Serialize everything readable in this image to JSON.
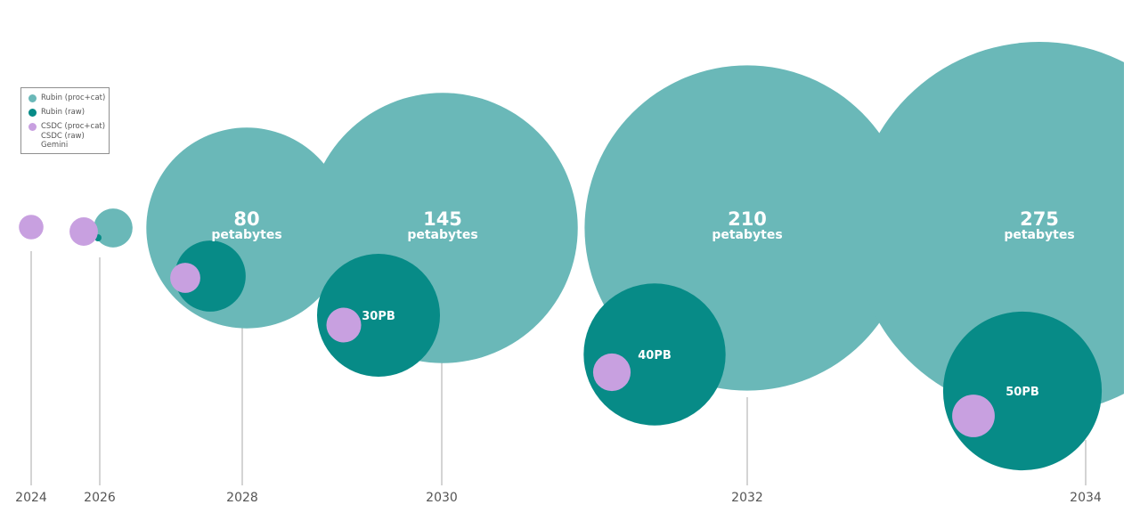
{
  "chart_data": {
    "type": "bubble",
    "colors": {
      "rubin_proc_cat": "#6ab8b8",
      "rubin_raw": "#078b87",
      "csdc_proc_cat": "#c8a0e0",
      "axis": "#aaaaaa",
      "tick_text": "#555555"
    },
    "years": [
      "2024",
      "2026",
      "2028",
      "2030",
      "2032",
      "2034"
    ],
    "series": [
      {
        "name": "Rubin (proc+cat)",
        "values": [
          null,
          3,
          80,
          145,
          210,
          275
        ],
        "labels": [
          "",
          "",
          "80",
          "145",
          "210",
          "275"
        ],
        "unit_label": "petabytes"
      },
      {
        "name": "Rubin (raw)",
        "values": [
          null,
          0.1,
          10,
          30,
          40,
          50
        ],
        "labels": [
          "",
          "",
          "",
          "30PB",
          "40PB",
          "50PB"
        ]
      },
      {
        "name": "CSDC (proc+cat)",
        "values": [
          1.2,
          1.6,
          1.8,
          2.4,
          2.8,
          3.6
        ],
        "labels": [
          "",
          "",
          "",
          "",
          "",
          ""
        ]
      }
    ]
  },
  "legend": {
    "items": [
      {
        "label": "Rubin (proc+cat)",
        "color": "#6ab8b8"
      },
      {
        "label": "Rubin (raw)",
        "color": "#078b87"
      },
      {
        "label": "CSDC (proc+cat)",
        "color": "#c8a0e0"
      }
    ],
    "extra_lines": [
      "CSDC (raw)",
      "Gemini"
    ]
  }
}
